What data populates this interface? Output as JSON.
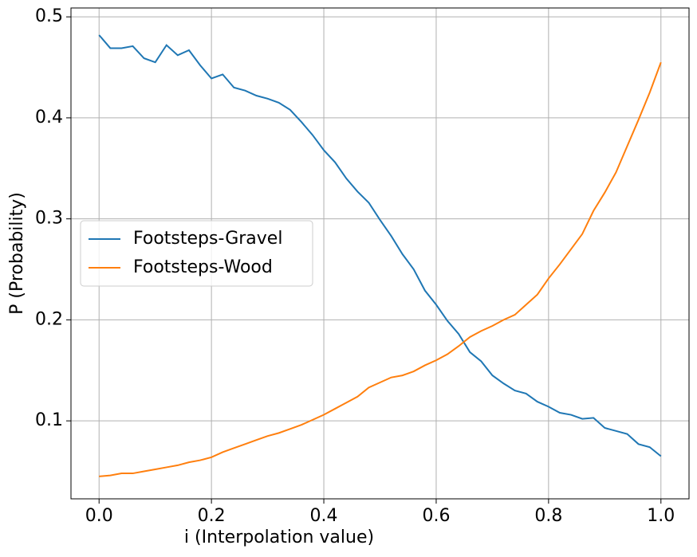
{
  "chart_data": {
    "type": "line",
    "xlabel": "i (Interpolation value)",
    "ylabel": "P (Probability)",
    "x": [
      0,
      0.02,
      0.04,
      0.06,
      0.08,
      0.1,
      0.12,
      0.14,
      0.16,
      0.18,
      0.2,
      0.22,
      0.24,
      0.26,
      0.28,
      0.3,
      0.32,
      0.34,
      0.36,
      0.38,
      0.4,
      0.42,
      0.44,
      0.46,
      0.48,
      0.5,
      0.52,
      0.54,
      0.56,
      0.58,
      0.6,
      0.62,
      0.64,
      0.66,
      0.68,
      0.7,
      0.72,
      0.74,
      0.76,
      0.78,
      0.8,
      0.82,
      0.84,
      0.86,
      0.88,
      0.9,
      0.92,
      0.94,
      0.96,
      0.98,
      1.0
    ],
    "series": [
      {
        "name": "Footsteps-Gravel",
        "color": "#1f77b4",
        "values": [
          0.482,
          0.469,
          0.469,
          0.471,
          0.459,
          0.455,
          0.472,
          0.462,
          0.467,
          0.452,
          0.439,
          0.443,
          0.43,
          0.427,
          0.422,
          0.419,
          0.415,
          0.408,
          0.396,
          0.383,
          0.368,
          0.356,
          0.34,
          0.327,
          0.316,
          0.299,
          0.283,
          0.265,
          0.25,
          0.229,
          0.215,
          0.199,
          0.186,
          0.168,
          0.159,
          0.145,
          0.137,
          0.13,
          0.127,
          0.119,
          0.114,
          0.108,
          0.106,
          0.102,
          0.103,
          0.093,
          0.09,
          0.087,
          0.077,
          0.074,
          0.065
        ]
      },
      {
        "name": "Footsteps-Wood",
        "color": "#ff7f0e",
        "values": [
          0.045,
          0.046,
          0.048,
          0.048,
          0.05,
          0.052,
          0.054,
          0.056,
          0.059,
          0.061,
          0.064,
          0.069,
          0.073,
          0.077,
          0.081,
          0.085,
          0.088,
          0.092,
          0.096,
          0.101,
          0.106,
          0.112,
          0.118,
          0.124,
          0.133,
          0.138,
          0.143,
          0.145,
          0.149,
          0.155,
          0.16,
          0.166,
          0.174,
          0.183,
          0.189,
          0.194,
          0.2,
          0.205,
          0.215,
          0.225,
          0.241,
          0.255,
          0.27,
          0.285,
          0.308,
          0.326,
          0.346,
          0.372,
          0.398,
          0.425,
          0.455
        ]
      }
    ],
    "xlim": [
      -0.05,
      1.05
    ],
    "xticks": [
      {
        "value": 0,
        "label": "0.0"
      },
      {
        "value": 0.2,
        "label": "0.2"
      },
      {
        "value": 0.4,
        "label": "0.4"
      },
      {
        "value": 0.6,
        "label": "0.6"
      },
      {
        "value": 0.8,
        "label": "0.8"
      },
      {
        "value": 1,
        "label": "1.0"
      }
    ],
    "ylim": [
      0.0228,
      0.5088
    ],
    "yticks": [
      0.1,
      0.2,
      0.3,
      0.4,
      0.5
    ],
    "grid": true,
    "legend": "center left"
  }
}
